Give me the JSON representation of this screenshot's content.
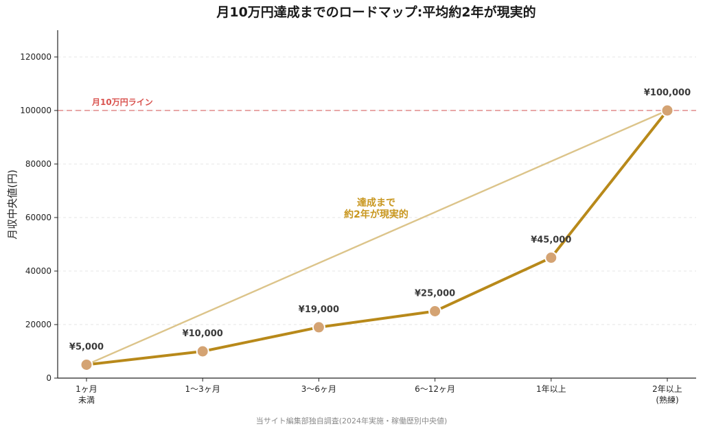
{
  "chart_data": {
    "type": "line",
    "title": "月10万円達成までのロードマップ:平均約2年が現実的",
    "xlabel": "",
    "ylabel": "月収中央値(円)",
    "categories": [
      [
        "1ヶ月",
        "未満"
      ],
      [
        "1〜3ヶ月"
      ],
      [
        "3〜6ヶ月"
      ],
      [
        "6〜12ヶ月"
      ],
      [
        "1年以上"
      ],
      [
        "2年以上",
        "(熟練)"
      ]
    ],
    "series": [
      {
        "values": [
          5000,
          10000,
          19000,
          25000,
          45000,
          100000
        ],
        "data_labels": [
          "¥5,000",
          "¥10,000",
          "¥19,000",
          "¥25,000",
          "¥45,000",
          "¥100,000"
        ],
        "color": "#b8891a",
        "marker_color": "#d4a373"
      }
    ],
    "trend_line": {
      "from": 5000,
      "to": 100000,
      "color": "#dcc48a"
    },
    "reference_line": {
      "value": 100000,
      "label": "月10万円ライン",
      "color": "#e08a8a"
    },
    "annotation": {
      "lines": [
        "達成まで",
        "約2年が現実的"
      ],
      "color": "#c8961e"
    },
    "ylim": [
      0,
      130000
    ],
    "yticks": [
      0,
      20000,
      40000,
      60000,
      80000,
      100000,
      120000
    ],
    "grid": true,
    "source": "当サイト編集部独自調査(2024年実施・稼働歴別中央値)"
  }
}
